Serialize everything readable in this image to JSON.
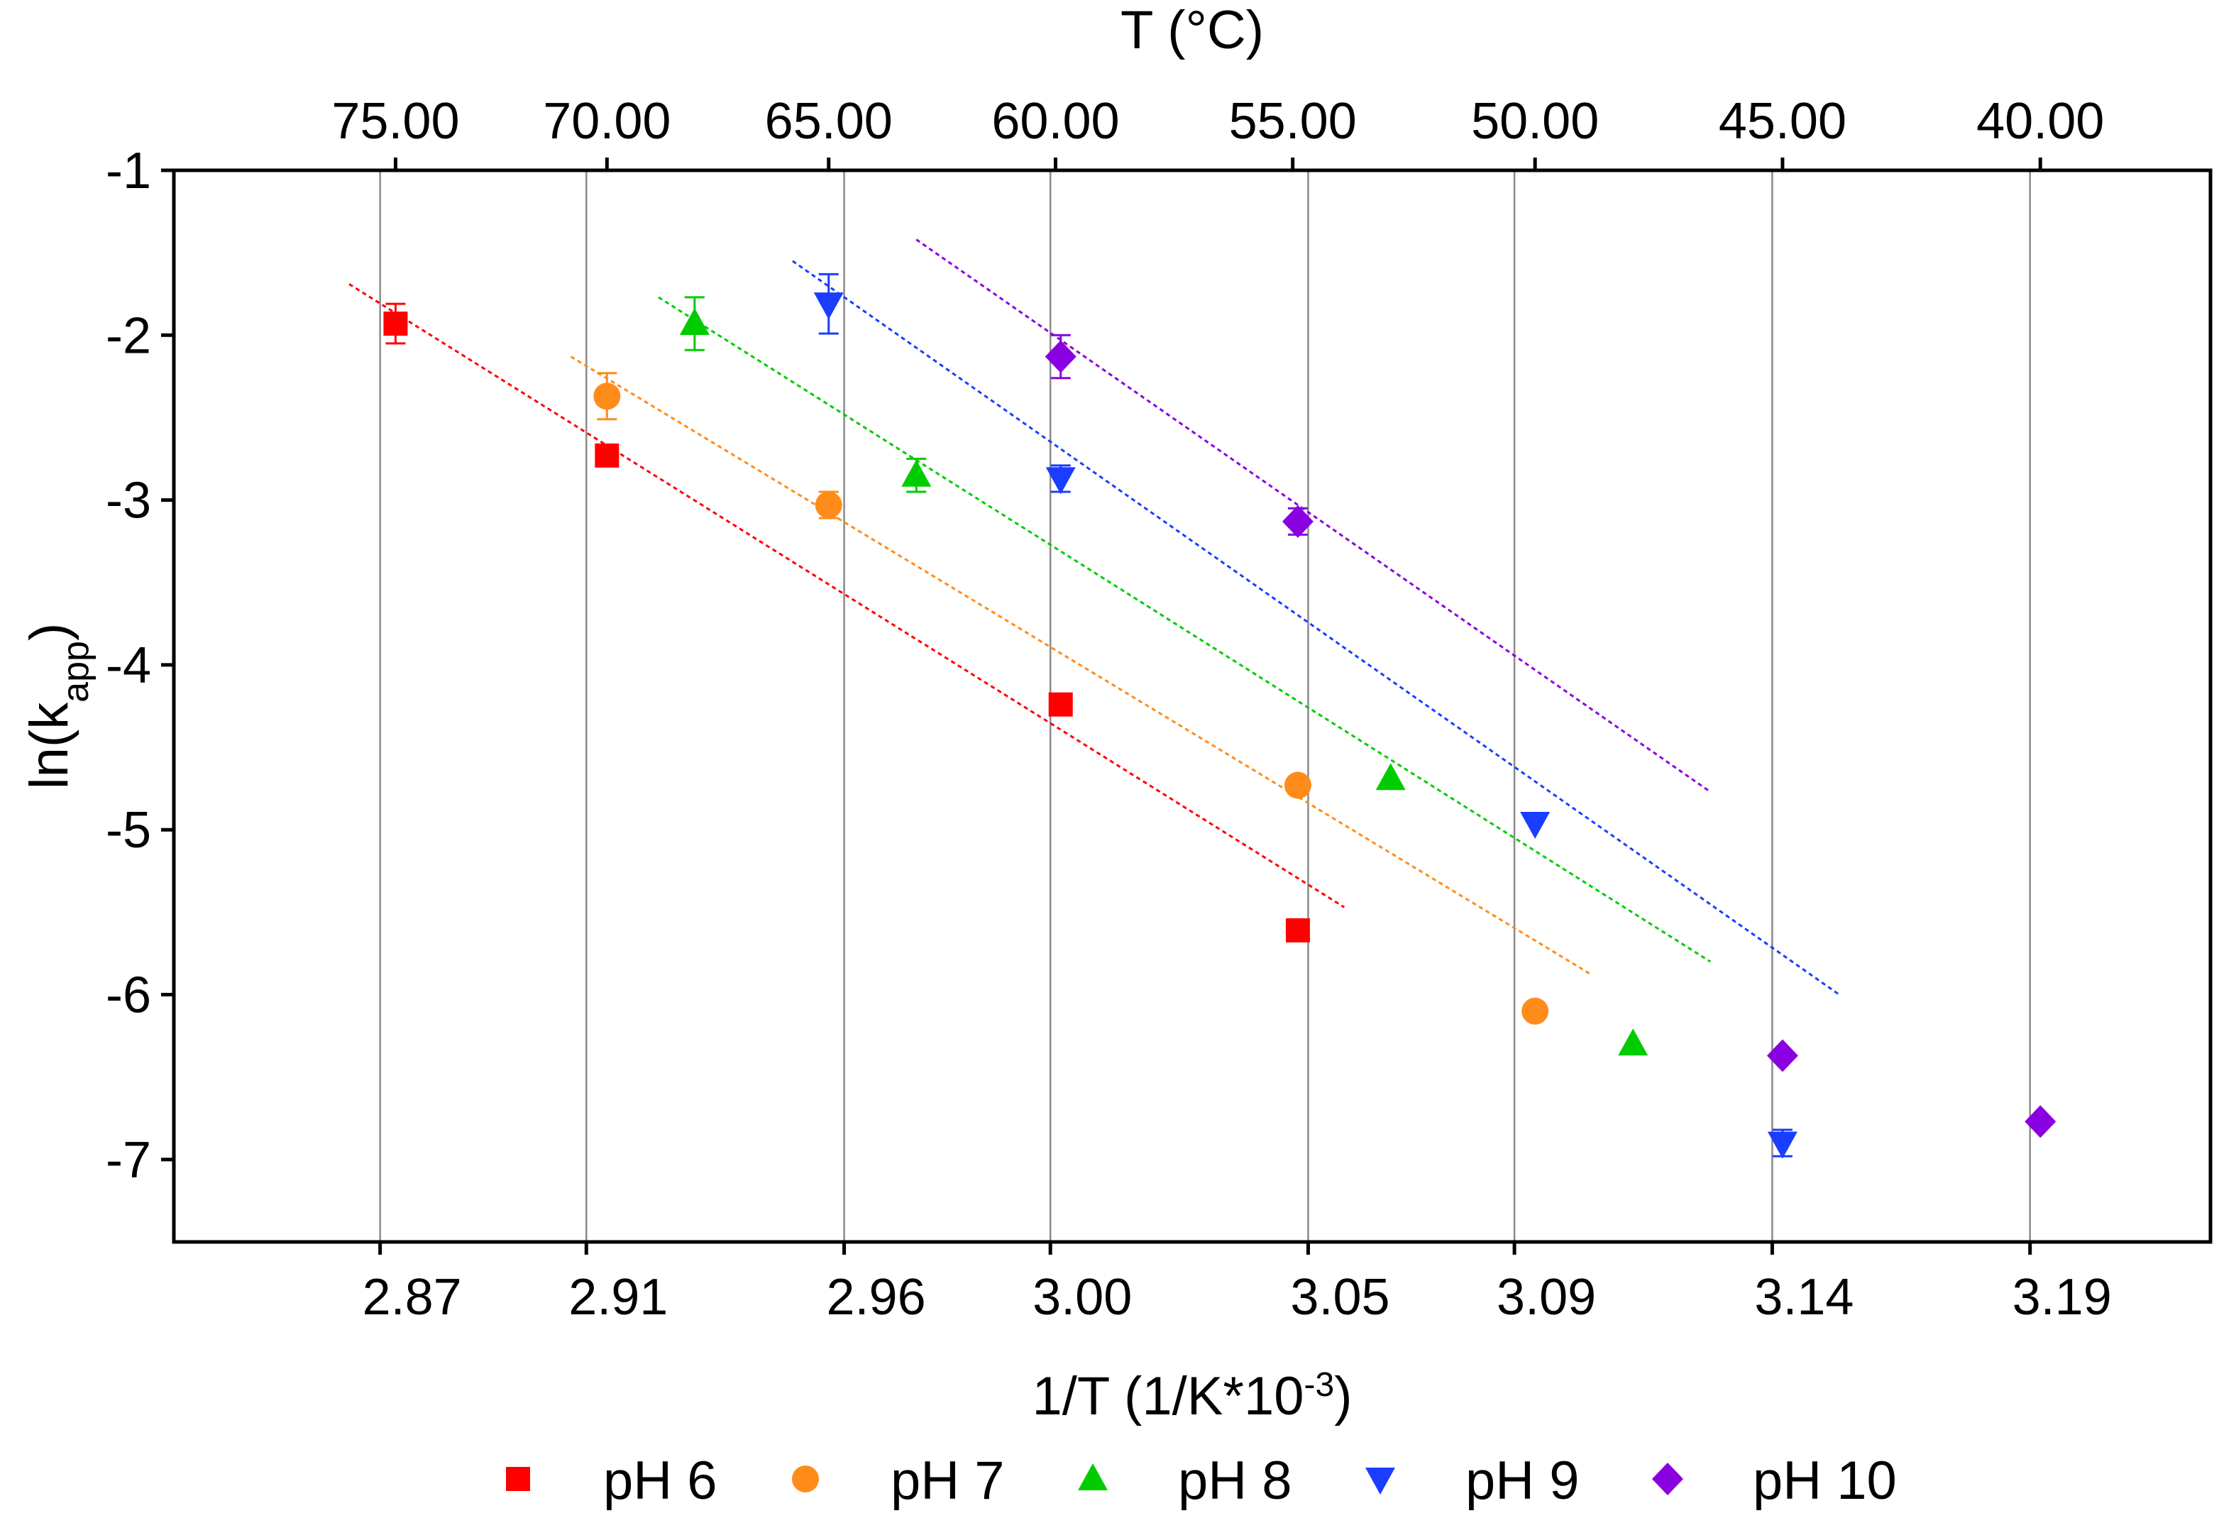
{
  "chart_data": {
    "type": "scatter",
    "title": "",
    "xlabel_main": "1/T (1/K*10",
    "xlabel_sup": "-3",
    "xlabel_close": ")",
    "ylabel_main": "ln(k",
    "ylabel_sub": "app",
    "ylabel_close": ")",
    "top_axis_title": "T (°C)",
    "xlim": [
      2.83,
      3.225
    ],
    "ylim": [
      -7.5,
      -1
    ],
    "grid": "vertical lines at bottom tick positions",
    "x_ticks": [
      2.87,
      2.91,
      2.96,
      3.0,
      3.05,
      3.09,
      3.14,
      3.19
    ],
    "x_tick_labels": [
      "2.87",
      "2.91",
      "2.96",
      "3.00",
      "3.05",
      "3.09",
      "3.14",
      "3.19"
    ],
    "y_ticks": [
      -1,
      -2,
      -3,
      -4,
      -5,
      -6,
      -7
    ],
    "y_tick_labels": [
      "-1",
      "-2",
      "-3",
      "-4",
      "-5",
      "-6",
      "-7"
    ],
    "top_ticks": [
      {
        "x": 2.873,
        "label": "75.00"
      },
      {
        "x": 2.914,
        "label": "70.00"
      },
      {
        "x": 2.957,
        "label": "65.00"
      },
      {
        "x": 3.001,
        "label": "60.00"
      },
      {
        "x": 3.047,
        "label": "55.00"
      },
      {
        "x": 3.094,
        "label": "50.00"
      },
      {
        "x": 3.142,
        "label": "45.00"
      },
      {
        "x": 3.192,
        "label": "40.00"
      }
    ],
    "legend_position": "bottom",
    "series": [
      {
        "name": "pH 6",
        "color": "#ff0000",
        "marker": "square",
        "x": [
          2.873,
          2.914,
          3.002,
          3.048
        ],
        "y": [
          -1.93,
          -2.73,
          -4.24,
          -5.61
        ],
        "err": [
          0.12,
          0.04,
          0.04,
          0.04
        ],
        "fit": {
          "x": [
            2.864,
            3.057
          ],
          "y": [
            -1.69,
            -5.47
          ]
        }
      },
      {
        "name": "pH 7",
        "color": "#ff8c1a",
        "marker": "circle",
        "x": [
          2.914,
          2.957,
          3.048,
          3.094
        ],
        "y": [
          -2.37,
          -3.03,
          -4.73,
          -6.1
        ],
        "err": [
          0.14,
          0.08,
          0.04,
          0.04
        ],
        "fit": {
          "x": [
            2.907,
            3.105
          ],
          "y": [
            -2.13,
            -5.88
          ]
        }
      },
      {
        "name": "pH 8",
        "color": "#00cc00",
        "marker": "triangle-up",
        "x": [
          2.931,
          2.974,
          3.066,
          3.113
        ],
        "y": [
          -1.93,
          -2.85,
          -4.69,
          -6.3
        ],
        "err": [
          0.16,
          0.1,
          0.04,
          0.04
        ],
        "fit": {
          "x": [
            2.924,
            3.128
          ],
          "y": [
            -1.77,
            -5.8
          ]
        }
      },
      {
        "name": "pH 9",
        "color": "#1a3dff",
        "marker": "triangle-down",
        "x": [
          2.957,
          3.002,
          3.094,
          3.142
        ],
        "y": [
          -1.81,
          -2.87,
          -4.96,
          -6.9
        ],
        "err": [
          0.18,
          0.08,
          0.04,
          0.08
        ],
        "fit": {
          "x": [
            2.95,
            3.153
          ],
          "y": [
            -1.55,
            -6.0
          ]
        }
      },
      {
        "name": "pH 10",
        "color": "#8a00e0",
        "marker": "diamond",
        "x": [
          3.002,
          3.048,
          3.142,
          3.192
        ],
        "y": [
          -2.13,
          -3.13,
          -6.37,
          -6.77
        ],
        "err": [
          0.13,
          0.08,
          0.04,
          0.04
        ],
        "fit": {
          "x": [
            2.974,
            3.128
          ],
          "y": [
            -1.42,
            -4.77
          ]
        }
      }
    ]
  }
}
